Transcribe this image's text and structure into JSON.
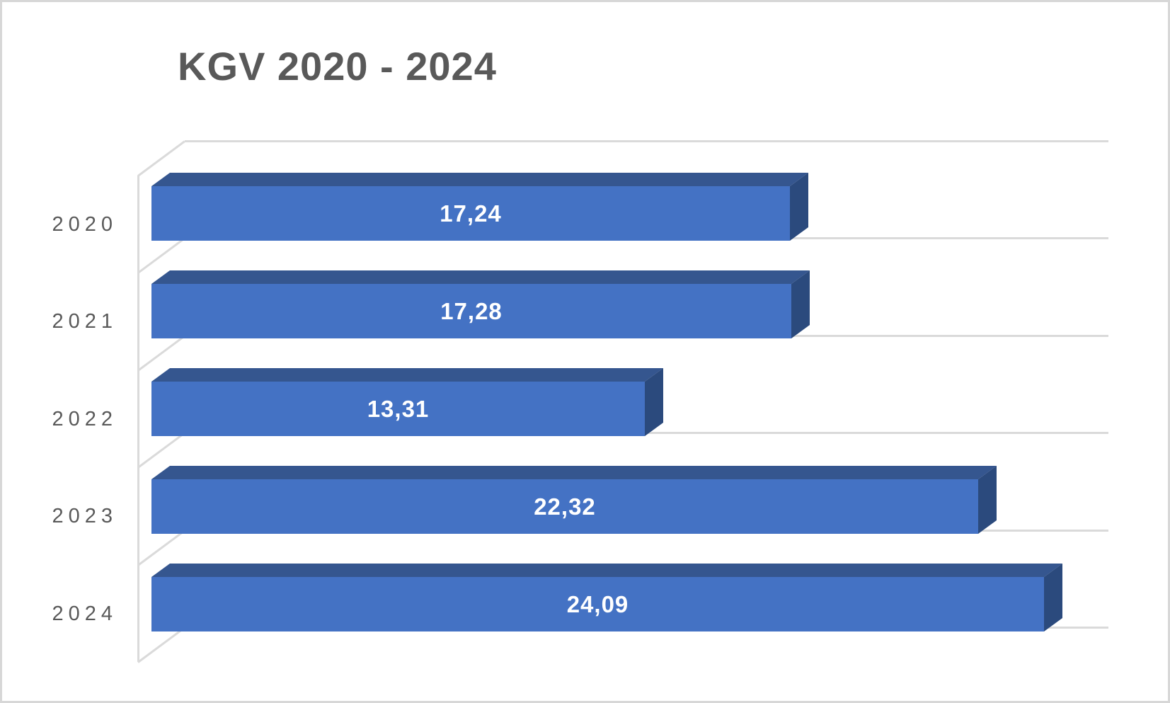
{
  "chart_data": {
    "type": "bar",
    "orientation": "horizontal",
    "effect": "3d",
    "title": "KGV 2020 - 2024",
    "categories": [
      "2020",
      "2021",
      "2022",
      "2023",
      "2024"
    ],
    "values": [
      17.24,
      17.28,
      13.31,
      22.32,
      24.09
    ],
    "value_labels": [
      "17,24",
      "17,28",
      "13,31",
      "22,32",
      "24,09"
    ],
    "xlabel": "",
    "ylabel": "",
    "legend": "none",
    "grid": true,
    "colors": {
      "bar_front": "#4472C4",
      "bar_top": "#35568F",
      "bar_side": "#2B4A7D",
      "gridline": "#DADADA",
      "title_text": "#595959",
      "category_text": "#595959",
      "data_label_text": "#FFFFFF",
      "background": "#FFFFFF",
      "border": "#D7D7D7"
    }
  }
}
